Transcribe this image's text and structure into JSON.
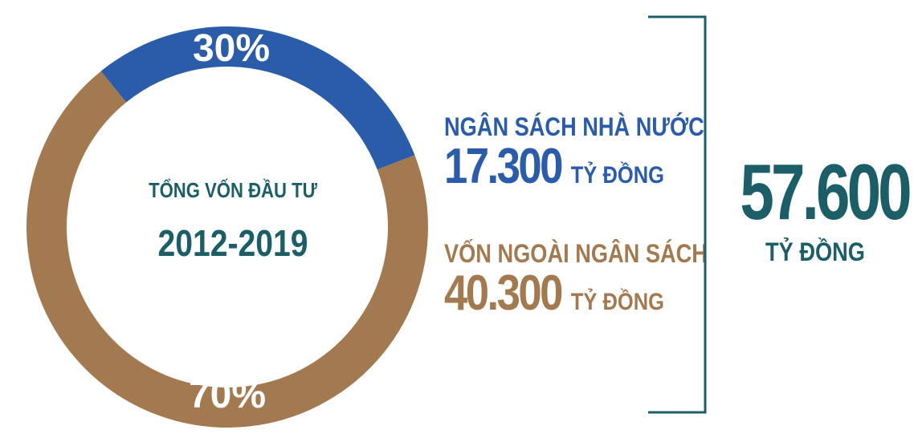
{
  "chart_data": {
    "type": "pie",
    "center_title": "TỔNG VỐN ĐẦU TƯ",
    "center_subtitle": "2012-2019",
    "slices": [
      {
        "label": "NGÂN SÁCH NHÀ NƯỚC",
        "percent_label": "30%",
        "value": 30,
        "amount": "17.300",
        "unit": "TỶ ĐỒNG",
        "color": "#2a5caa"
      },
      {
        "label": "VỐN NGOÀI NGÂN SÁCH",
        "percent_label": "70%",
        "value": 70,
        "amount": "40.300",
        "unit": "TỶ ĐỒNG",
        "color": "#a37a50"
      }
    ],
    "total": {
      "value": "57.600",
      "unit": "TỶ ĐỒNG",
      "color": "#1b5e68"
    }
  }
}
